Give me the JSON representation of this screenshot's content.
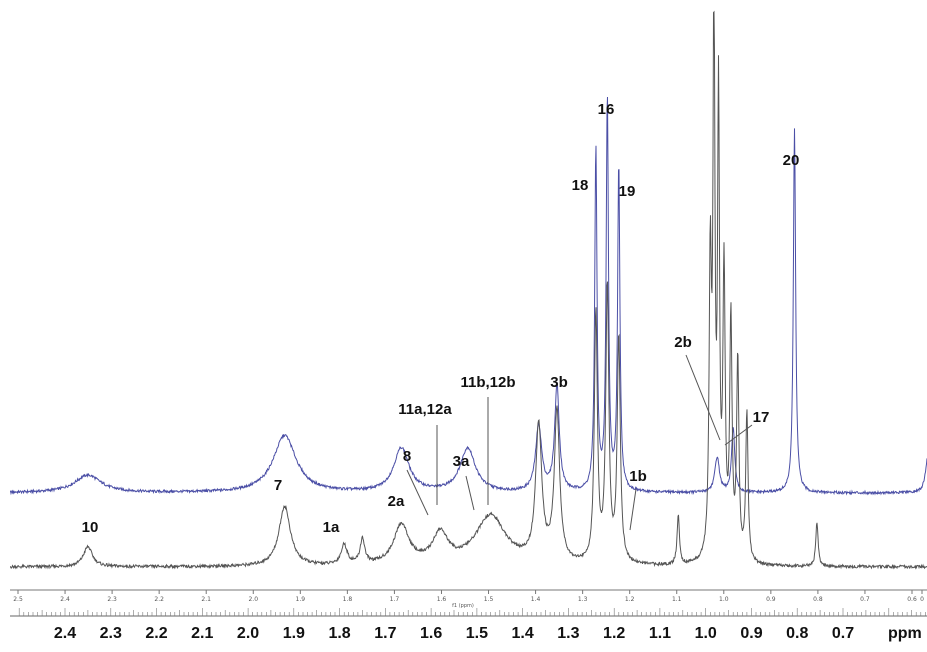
{
  "chart_data": {
    "type": "line",
    "title": "",
    "xlabel": "ppm",
    "ylabel": "",
    "xlim": [
      2.5,
      0.5
    ],
    "x_reversed": true,
    "grid": false,
    "series": [
      {
        "color": "#4b4fa6",
        "baseline": "upper",
        "peaks": [
          {
            "ppm": 2.35,
            "height": 0.04,
            "width": 0.035
          },
          {
            "ppm": 1.92,
            "height": 0.13,
            "width": 0.03
          },
          {
            "ppm": 1.665,
            "height": 0.1,
            "width": 0.02
          },
          {
            "ppm": 1.52,
            "height": 0.1,
            "width": 0.02
          },
          {
            "ppm": 1.365,
            "height": 0.15,
            "width": 0.008
          },
          {
            "ppm": 1.325,
            "height": 0.24,
            "width": 0.006
          },
          {
            "ppm": 1.24,
            "height": 0.78,
            "width": 0.003
          },
          {
            "ppm": 1.215,
            "height": 0.89,
            "width": 0.003
          },
          {
            "ppm": 1.19,
            "height": 0.74,
            "width": 0.003
          },
          {
            "ppm": 0.975,
            "height": 0.08,
            "width": 0.006
          },
          {
            "ppm": 0.94,
            "height": 0.15,
            "width": 0.004
          },
          {
            "ppm": 0.806,
            "height": 0.83,
            "width": 0.003
          },
          {
            "ppm": 0.515,
            "height": 0.08,
            "width": 0.006
          }
        ]
      },
      {
        "color": "#555555",
        "baseline": "lower",
        "peaks": [
          {
            "ppm": 2.35,
            "height": 0.04,
            "width": 0.012
          },
          {
            "ppm": 1.92,
            "height": 0.12,
            "width": 0.015
          },
          {
            "ppm": 1.79,
            "height": 0.04,
            "width": 0.008
          },
          {
            "ppm": 1.75,
            "height": 0.05,
            "width": 0.006
          },
          {
            "ppm": 1.665,
            "height": 0.08,
            "width": 0.02
          },
          {
            "ppm": 1.58,
            "height": 0.06,
            "width": 0.02
          },
          {
            "ppm": 1.47,
            "height": 0.1,
            "width": 0.04
          },
          {
            "ppm": 1.365,
            "height": 0.27,
            "width": 0.008
          },
          {
            "ppm": 1.325,
            "height": 0.3,
            "width": 0.007
          },
          {
            "ppm": 1.24,
            "height": 0.5,
            "width": 0.004
          },
          {
            "ppm": 1.215,
            "height": 0.55,
            "width": 0.004
          },
          {
            "ppm": 1.19,
            "height": 0.45,
            "width": 0.004
          },
          {
            "ppm": 1.06,
            "height": 0.1,
            "width": 0.003
          },
          {
            "ppm": 0.99,
            "height": 0.58,
            "width": 0.003
          },
          {
            "ppm": 0.982,
            "height": 1.1,
            "width": 0.0025
          },
          {
            "ppm": 0.972,
            "height": 0.9,
            "width": 0.0025
          },
          {
            "ppm": 0.96,
            "height": 0.57,
            "width": 0.003
          },
          {
            "ppm": 0.945,
            "height": 0.48,
            "width": 0.003
          },
          {
            "ppm": 0.93,
            "height": 0.4,
            "width": 0.003
          },
          {
            "ppm": 0.91,
            "height": 0.3,
            "width": 0.003
          },
          {
            "ppm": 0.757,
            "height": 0.09,
            "width": 0.003
          }
        ]
      }
    ],
    "annotations": [
      {
        "text": "10",
        "ppm": 2.35,
        "trace": "lower",
        "leader": false
      },
      {
        "text": "7",
        "ppm": 1.93,
        "trace": "lower",
        "leader": false
      },
      {
        "text": "1a",
        "ppm": 1.81,
        "trace": "lower",
        "leader": false
      },
      {
        "text": "2a",
        "ppm": 1.67,
        "trace": "lower",
        "leader": false
      },
      {
        "text": "8",
        "ppm": 1.645,
        "trace": "upper",
        "leader": true
      },
      {
        "text": "11a,12a",
        "ppm": 1.585,
        "trace": "upper",
        "leader": true
      },
      {
        "text": "3a",
        "ppm": 1.5,
        "trace": "upper",
        "leader": true
      },
      {
        "text": "11b,12b",
        "ppm": 1.47,
        "trace": "upper",
        "leader": true
      },
      {
        "text": "3b",
        "ppm": 1.33,
        "trace": "upper",
        "leader": false
      },
      {
        "text": "1b",
        "ppm": 1.14,
        "trace": "lower",
        "leader": true
      },
      {
        "text": "18",
        "ppm": 1.26,
        "trace": "upper",
        "leader": false
      },
      {
        "text": "16",
        "ppm": 1.215,
        "trace": "upper",
        "leader": false
      },
      {
        "text": "19",
        "ppm": 1.175,
        "trace": "upper",
        "leader": false
      },
      {
        "text": "2b",
        "ppm": 1.03,
        "trace": "upper",
        "leader": true
      },
      {
        "text": "17",
        "ppm": 0.86,
        "trace": "upper",
        "leader": true
      },
      {
        "text": "20",
        "ppm": 0.806,
        "trace": "upper",
        "leader": false
      }
    ],
    "small_axis": {
      "ticks": [
        "2.5",
        "2.4",
        "2.3",
        "2.2",
        "2.1",
        "2.0",
        "1.9",
        "1.8",
        "1.7",
        "1.6",
        "1.5",
        "1.4",
        "1.3",
        "1.2",
        "1.1",
        "1.0",
        "0.9",
        "0.8",
        "0.7",
        "0.6",
        "0"
      ],
      "unit": "f1 (ppm)"
    },
    "big_axis": {
      "ticks": [
        "2.4",
        "2.3",
        "2.2",
        "2.1",
        "2.0",
        "1.9",
        "1.8",
        "1.7",
        "1.6",
        "1.5",
        "1.4",
        "1.3",
        "1.2",
        "1.1",
        "1.0",
        "0.9",
        "0.8",
        "0.7"
      ],
      "unit": "ppm"
    }
  }
}
